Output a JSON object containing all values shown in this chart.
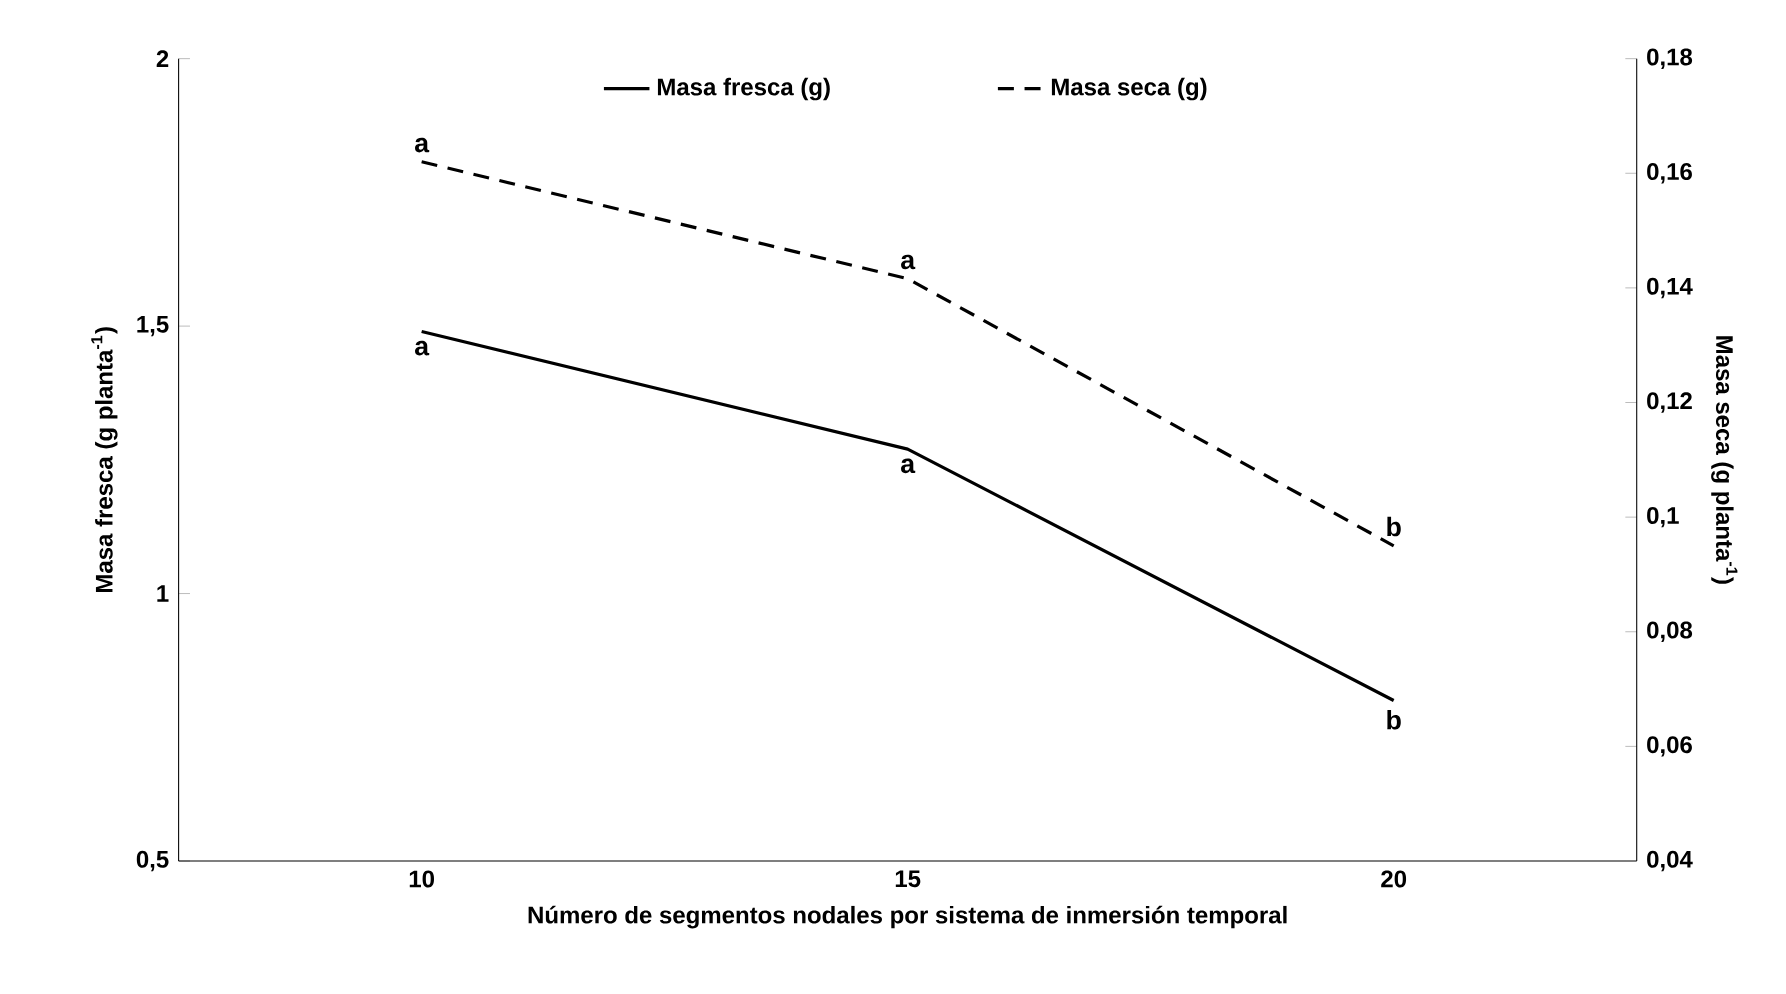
{
  "chart_data": {
    "type": "line",
    "xlabel": "Número de segmentos nodales por sistema de inmersión temporal",
    "ylabel": "Masa fresca (g planta$^{-1}$)",
    "y2label": "Masa seca (g planta$^{-1}$)",
    "categories": [
      "10",
      "15",
      "20"
    ],
    "series": [
      {
        "name": "Masa fresca (g)",
        "color": "#000000",
        "line_style": "solid",
        "values": [
          1.49,
          1.27,
          0.8
        ]
      },
      {
        "name": "Masa seca (g)",
        "color": "#000000",
        "line_style": "dashed",
        "axis": "y2",
        "values": [
          0.162,
          0.1416,
          0.095
        ]
      }
    ],
    "ylim": [
      0.5,
      2
    ],
    "yticks": [
      {
        "value": 0.5,
        "label": "0,5"
      },
      {
        "value": 1,
        "label": "1"
      },
      {
        "value": 1.5,
        "label": "1,5"
      },
      {
        "value": 2,
        "label": "2"
      }
    ],
    "y2lim": [
      0.04,
      0.18
    ],
    "y2ticks": [
      {
        "value": 0.04,
        "label": "0,04"
      },
      {
        "value": 0.06,
        "label": "0,06"
      },
      {
        "value": 0.08,
        "label": "0,08"
      },
      {
        "value": 0.1,
        "label": "0,1"
      },
      {
        "value": 0.12,
        "label": "0,12"
      },
      {
        "value": 0.14,
        "label": "0,14"
      },
      {
        "value": 0.16,
        "label": "0,16"
      },
      {
        "value": 0.18,
        "label": "0,18"
      }
    ],
    "legend": "top",
    "marker": "none",
    "grid": false,
    "annotations": [
      "a",
      "a",
      "b",
      "a",
      "a",
      "b"
    ]
  }
}
